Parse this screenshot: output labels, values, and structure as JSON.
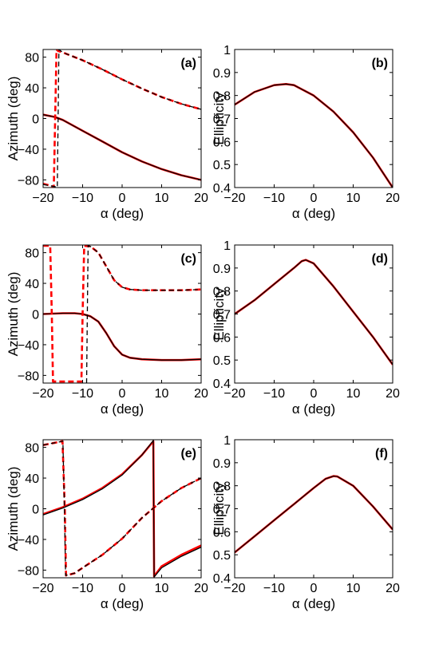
{
  "chart_data": [
    {
      "type": "line",
      "panel_label": "(a)",
      "xlabel": "α (deg)",
      "ylabel": "Azimuth (deg)",
      "xlim": [
        -20,
        20
      ],
      "ylim": [
        -90,
        90
      ],
      "xticks": [
        -20,
        -10,
        0,
        10,
        20
      ],
      "yticks": [
        -80,
        -40,
        0,
        40,
        80
      ],
      "series": [
        {
          "style": "solid",
          "color": "#ff0000",
          "x": [
            -20,
            -17,
            -15,
            -10,
            -5,
            0,
            5,
            10,
            15,
            20
          ],
          "y": [
            5,
            2,
            -2,
            -16,
            -30,
            -44,
            -56,
            -66,
            -74,
            -80
          ]
        },
        {
          "style": "solid",
          "color": "#000000",
          "x": [
            -20,
            -17,
            -15,
            -10,
            -5,
            0,
            5,
            10,
            15,
            20
          ],
          "y": [
            5,
            2,
            -2,
            -16,
            -30,
            -44,
            -56,
            -66,
            -74,
            -80
          ]
        },
        {
          "style": "dashed",
          "color": "#ff0000",
          "x": [
            -20,
            -17.8,
            -17.3,
            -16.6,
            -16.2,
            -15,
            -10,
            -5,
            0,
            5,
            10,
            15,
            20
          ],
          "y": [
            -85,
            -88,
            -90,
            90,
            88,
            86,
            76,
            64,
            51,
            39,
            28,
            19,
            12
          ]
        },
        {
          "style": "dashed",
          "color": "#000000",
          "x": [
            -20,
            -16.8,
            -16.4,
            -16,
            -15,
            -10,
            -5,
            0,
            5,
            10,
            15,
            20
          ],
          "y": [
            -86,
            -89,
            -90,
            90,
            86,
            76,
            64,
            51,
            39,
            28,
            19,
            12
          ]
        }
      ]
    },
    {
      "type": "line",
      "panel_label": "(b)",
      "xlabel": "α (deg)",
      "ylabel": "Ellipticity",
      "xlim": [
        -20,
        20
      ],
      "ylim": [
        0.4,
        1
      ],
      "xticks": [
        -20,
        -10,
        0,
        10,
        20
      ],
      "yticks": [
        0.4,
        0.5,
        0.6,
        0.7,
        0.8,
        0.9,
        1
      ],
      "series": [
        {
          "style": "solid",
          "color": "#ff0000",
          "x": [
            -20,
            -15,
            -10,
            -7,
            -5,
            0,
            5,
            10,
            15,
            20
          ],
          "y": [
            0.76,
            0.815,
            0.845,
            0.85,
            0.845,
            0.8,
            0.73,
            0.64,
            0.53,
            0.4
          ]
        },
        {
          "style": "solid",
          "color": "#000000",
          "x": [
            -20,
            -15,
            -10,
            -7,
            -5,
            0,
            5,
            10,
            15,
            20
          ],
          "y": [
            0.76,
            0.815,
            0.845,
            0.85,
            0.845,
            0.8,
            0.73,
            0.64,
            0.53,
            0.4
          ]
        }
      ]
    },
    {
      "type": "line",
      "panel_label": "(c)",
      "xlabel": "α (deg)",
      "ylabel": "Azimuth (deg)",
      "xlim": [
        -20,
        20
      ],
      "ylim": [
        -90,
        90
      ],
      "xticks": [
        -20,
        -10,
        0,
        10,
        20
      ],
      "yticks": [
        -80,
        -40,
        0,
        40,
        80
      ],
      "series": [
        {
          "style": "solid",
          "color": "#ff0000",
          "x": [
            -20,
            -15,
            -12,
            -10,
            -8,
            -6,
            -4,
            -2,
            0,
            2,
            5,
            10,
            15,
            20
          ],
          "y": [
            0,
            1,
            1,
            0,
            -3,
            -10,
            -25,
            -42,
            -53,
            -57,
            -59,
            -60,
            -60,
            -59
          ]
        },
        {
          "style": "solid",
          "color": "#000000",
          "x": [
            -20,
            -15,
            -12,
            -10,
            -8,
            -6,
            -4,
            -2,
            0,
            2,
            5,
            10,
            15,
            20
          ],
          "y": [
            0,
            1,
            1,
            0,
            -3,
            -10,
            -25,
            -42,
            -53,
            -57,
            -59,
            -60,
            -60,
            -59
          ]
        },
        {
          "style": "dashed",
          "color": "#ff0000",
          "x": [
            -20,
            -18.2,
            -17.8,
            -17.5,
            -14,
            -10.3,
            -10,
            -9.6,
            -8,
            -6,
            -4,
            -2,
            0,
            2,
            5,
            10,
            15,
            20
          ],
          "y": [
            89,
            89,
            0,
            -88,
            -88,
            -88,
            0,
            89,
            88,
            80,
            62,
            44,
            35,
            32,
            31,
            31,
            31,
            32
          ]
        },
        {
          "style": "dashed",
          "color": "#000000",
          "x": [
            -9,
            -8.8,
            -8.6,
            -8,
            -6,
            -4,
            -2,
            0,
            2,
            5,
            10,
            15,
            20
          ],
          "y": [
            -90,
            0,
            89,
            88,
            80,
            62,
            44,
            35,
            32,
            31,
            31,
            31,
            32
          ]
        }
      ]
    },
    {
      "type": "line",
      "panel_label": "(d)",
      "xlabel": "α (deg)",
      "ylabel": "Ellipticity",
      "xlim": [
        -20,
        20
      ],
      "ylim": [
        0.4,
        1
      ],
      "xticks": [
        -20,
        -10,
        0,
        10,
        20
      ],
      "yticks": [
        0.4,
        0.5,
        0.6,
        0.7,
        0.8,
        0.9,
        1
      ],
      "series": [
        {
          "style": "solid",
          "color": "#ff0000",
          "x": [
            -20,
            -15,
            -10,
            -5,
            -3,
            -2,
            0,
            5,
            10,
            15,
            20
          ],
          "y": [
            0.7,
            0.76,
            0.83,
            0.9,
            0.93,
            0.935,
            0.92,
            0.82,
            0.71,
            0.6,
            0.48
          ]
        },
        {
          "style": "solid",
          "color": "#000000",
          "x": [
            -20,
            -15,
            -10,
            -5,
            -3,
            -2,
            0,
            5,
            10,
            15,
            20
          ],
          "y": [
            0.7,
            0.76,
            0.83,
            0.9,
            0.93,
            0.935,
            0.92,
            0.82,
            0.71,
            0.6,
            0.48
          ]
        }
      ]
    },
    {
      "type": "line",
      "panel_label": "(e)",
      "xlabel": "α (deg)",
      "ylabel": "Azimuth (deg)",
      "xlim": [
        -20,
        20
      ],
      "ylim": [
        -90,
        90
      ],
      "xticks": [
        -20,
        -10,
        0,
        10,
        20
      ],
      "yticks": [
        -80,
        -40,
        0,
        40,
        80
      ],
      "series": [
        {
          "style": "solid",
          "color": "#ff0000",
          "x": [
            -20,
            -15,
            -10,
            -5,
            0,
            5,
            7.9,
            8.1,
            10,
            15,
            20
          ],
          "y": [
            -7,
            2,
            13,
            27,
            45,
            70,
            88,
            -88,
            -75,
            -60,
            -48
          ]
        },
        {
          "style": "solid",
          "color": "#000000",
          "x": [
            -20,
            -15,
            -10,
            -5,
            0,
            5,
            7.9,
            8.1,
            10,
            15,
            20
          ],
          "y": [
            -8,
            1,
            12,
            26,
            44,
            70,
            89,
            -89,
            -77,
            -62,
            -50
          ]
        },
        {
          "style": "dashed",
          "color": "#ff0000",
          "x": [
            -20,
            -17,
            -15.1,
            -14.5,
            -14.2,
            -12,
            -10,
            -5,
            0,
            5,
            10,
            15,
            20
          ],
          "y": [
            83,
            86,
            88,
            0,
            -87,
            -84,
            -77,
            -60,
            -39,
            -12,
            10,
            27,
            40
          ]
        },
        {
          "style": "dashed",
          "color": "#000000",
          "x": [
            -20,
            -17,
            -15,
            -14.6,
            -14.3,
            -12,
            -10,
            -5,
            0,
            5,
            10,
            15,
            20
          ],
          "y": [
            83,
            86,
            88,
            0,
            -87,
            -84,
            -77,
            -60,
            -39,
            -12,
            10,
            27,
            40
          ]
        }
      ]
    },
    {
      "type": "line",
      "panel_label": "(f)",
      "xlabel": "α (deg)",
      "ylabel": "Ellipticity",
      "xlim": [
        -20,
        20
      ],
      "ylim": [
        0.4,
        1
      ],
      "xticks": [
        -20,
        -10,
        0,
        10,
        20
      ],
      "yticks": [
        0.4,
        0.5,
        0.6,
        0.7,
        0.8,
        0.9,
        1
      ],
      "series": [
        {
          "style": "solid",
          "color": "#ff0000",
          "x": [
            -20,
            -15,
            -10,
            -5,
            0,
            3,
            5,
            6,
            10,
            15,
            20
          ],
          "y": [
            0.51,
            0.58,
            0.65,
            0.72,
            0.79,
            0.83,
            0.842,
            0.84,
            0.8,
            0.71,
            0.61
          ]
        },
        {
          "style": "solid",
          "color": "#000000",
          "x": [
            -20,
            -15,
            -10,
            -5,
            0,
            3,
            5,
            6,
            10,
            15,
            20
          ],
          "y": [
            0.51,
            0.58,
            0.65,
            0.72,
            0.79,
            0.83,
            0.842,
            0.84,
            0.8,
            0.71,
            0.61
          ]
        }
      ]
    }
  ]
}
